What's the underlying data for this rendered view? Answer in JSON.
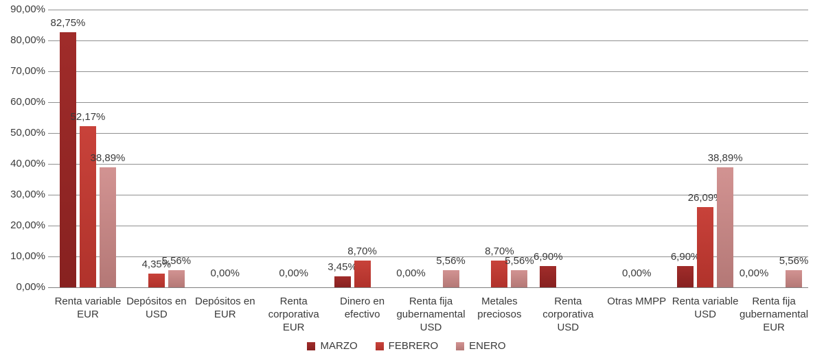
{
  "chart_data": {
    "type": "bar",
    "title": "",
    "xlabel": "",
    "ylabel": "",
    "ylim": [
      0,
      90
    ],
    "grid": true,
    "legend_position": "bottom-center",
    "y_ticks": [
      {
        "value": 0,
        "label": "0,00%"
      },
      {
        "value": 10,
        "label": "10,00%"
      },
      {
        "value": 20,
        "label": "20,00%"
      },
      {
        "value": 30,
        "label": "30,00%"
      },
      {
        "value": 40,
        "label": "40,00%"
      },
      {
        "value": 50,
        "label": "50,00%"
      },
      {
        "value": 60,
        "label": "60,00%"
      },
      {
        "value": 70,
        "label": "70,00%"
      },
      {
        "value": 80,
        "label": "80,00%"
      },
      {
        "value": 90,
        "label": "90,00%"
      }
    ],
    "series_meta": [
      {
        "name": "MARZO",
        "color_top": "#A02C2A",
        "color_bottom": "#872120",
        "legend_color": "#932524"
      },
      {
        "name": "FEBRERO",
        "color_top": "#C8423A",
        "color_bottom": "#B0322B",
        "legend_color": "#C03A32"
      },
      {
        "name": "ENERO",
        "color_top": "#D29392",
        "color_bottom": "#B47876",
        "legend_color": "#C98C8A"
      }
    ],
    "legend": [
      "MARZO",
      "FEBRERO",
      "ENERO"
    ],
    "categories": [
      {
        "label": "Renta variable EUR",
        "label_lines": [
          "Renta variable",
          "EUR"
        ],
        "bars": [
          {
            "series": "MARZO",
            "value": 82.75,
            "label": "82,75%"
          },
          {
            "series": "FEBRERO",
            "value": 52.17,
            "label": "52,17%"
          },
          {
            "series": "ENERO",
            "value": 38.89,
            "label": "38,89%"
          }
        ]
      },
      {
        "label": "Depósitos en USD",
        "label_lines": [
          "Depósitos en",
          "USD"
        ],
        "bars": [
          {
            "series": "FEBRERO",
            "value": 4.35,
            "label": "4,35%"
          },
          {
            "series": "ENERO",
            "value": 5.56,
            "label": "5,56%"
          }
        ]
      },
      {
        "label": "Depósitos en EUR",
        "label_lines": [
          "Depósitos en",
          "EUR"
        ],
        "bars": [],
        "zero_label": {
          "text": "0,00%",
          "slot": "FEBRERO"
        }
      },
      {
        "label": "Renta corporativa EUR",
        "label_lines": [
          "Renta",
          "corporativa",
          "EUR"
        ],
        "bars": [],
        "zero_label": {
          "text": "0,00%",
          "slot": "FEBRERO"
        }
      },
      {
        "label": "Dinero en efectivo",
        "label_lines": [
          "Dinero en",
          "efectivo"
        ],
        "bars": [
          {
            "series": "MARZO",
            "value": 3.45,
            "label": "3,45%"
          },
          {
            "series": "FEBRERO",
            "value": 8.7,
            "label": "8,70%"
          }
        ]
      },
      {
        "label": "Renta fija gubernamental USD",
        "label_lines": [
          "Renta fija",
          "gubernamental",
          "USD"
        ],
        "bars": [
          {
            "series": "ENERO",
            "value": 5.56,
            "label": "5,56%"
          }
        ],
        "zero_label": {
          "text": "0,00%",
          "slot": "MARZO"
        }
      },
      {
        "label": "Metales preciosos",
        "label_lines": [
          "Metales",
          "preciosos"
        ],
        "bars": [
          {
            "series": "FEBRERO",
            "value": 8.7,
            "label": "8,70%"
          },
          {
            "series": "ENERO",
            "value": 5.56,
            "label": "5,56%"
          }
        ]
      },
      {
        "label": "Renta corporativa USD",
        "label_lines": [
          "Renta",
          "corporativa",
          "USD"
        ],
        "bars": [
          {
            "series": "MARZO",
            "value": 6.9,
            "label": "6,90%"
          }
        ]
      },
      {
        "label": "Otras MMPP",
        "label_lines": [
          "Otras MMPP"
        ],
        "bars": [],
        "zero_label": {
          "text": "0,00%",
          "slot": "FEBRERO"
        }
      },
      {
        "label": "Renta variable USD",
        "label_lines": [
          "Renta variable",
          "USD"
        ],
        "bars": [
          {
            "series": "MARZO",
            "value": 6.9,
            "label": "6,90%"
          },
          {
            "series": "FEBRERO",
            "value": 26.09,
            "label": "26,09%"
          },
          {
            "series": "ENERO",
            "value": 38.89,
            "label": "38,89%"
          }
        ]
      },
      {
        "label": "Renta fija gubernamental EUR",
        "label_lines": [
          "Renta fija",
          "gubernamental",
          "EUR"
        ],
        "bars": [
          {
            "series": "ENERO",
            "value": 5.56,
            "label": "5,56%"
          }
        ],
        "zero_label": {
          "text": "0,00%",
          "slot": "MARZO"
        }
      }
    ],
    "axis_colors": {
      "gridline": "#909090",
      "baseline": "#7F7F7F",
      "text": "#3A3A3A"
    }
  }
}
